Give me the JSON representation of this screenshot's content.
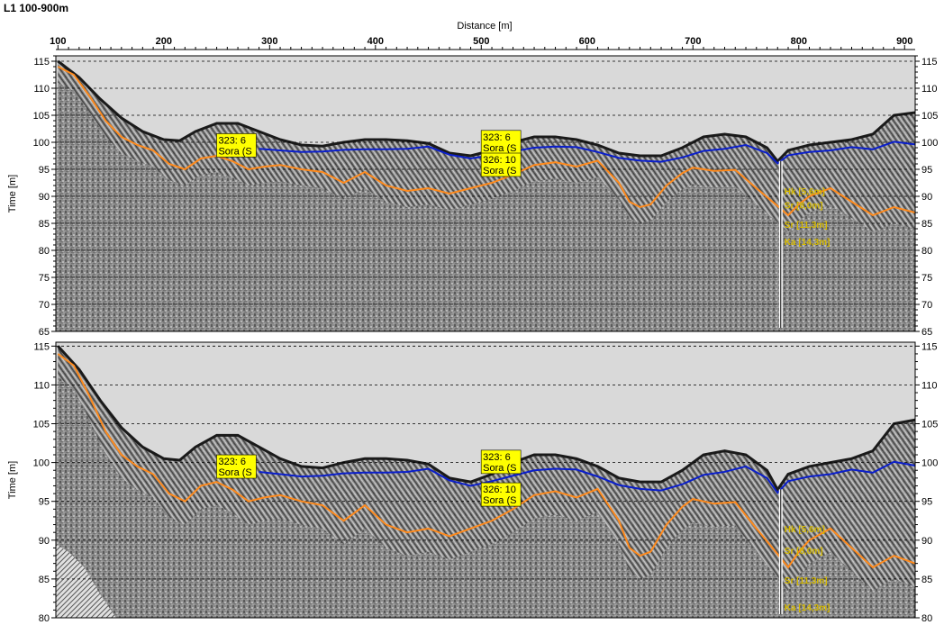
{
  "title": "L1 100-900m",
  "colors": {
    "water": "#0a1ecc",
    "bottom": "#ff8a1c",
    "label_bg": "#ffff00",
    "layer_text": "#d4b800",
    "sky": "#d9d9d9"
  },
  "chart_data": {
    "type": "line",
    "xlabel": "Distance [m]",
    "ylabel": "Time [m]",
    "xlim": [
      98,
      910
    ],
    "x_ticks": [
      100,
      200,
      300,
      400,
      500,
      600,
      700,
      800,
      900
    ],
    "grid": true,
    "panels": [
      {
        "ylim": [
          65,
          116
        ],
        "y_ticks": [
          115,
          110,
          105,
          100,
          95,
          90,
          85,
          80,
          75,
          70,
          65
        ],
        "series": [
          {
            "x": [
              100,
              120,
              140,
              160,
              180,
              200,
              215,
              230,
              250,
              270,
              290,
              310,
              330,
              350,
              370,
              390,
              410,
              430,
              450,
              470,
              490,
              510,
              530,
              550,
              570,
              590,
              610,
              630,
              650,
              670,
              690,
              710,
              730,
              750,
              770,
              780,
              790,
              810,
              830,
              850,
              870,
              890,
              910
            ],
            "y": [
              115,
              112,
              108,
              104.5,
              102,
              100.5,
              100.3,
              102,
              103.5,
              103.5,
              102,
              100.5,
              99.5,
              99.3,
              100,
              100.5,
              100.5,
              100.3,
              99.8,
              98,
              97.5,
              98.5,
              100,
              101,
              101,
              100.5,
              99.5,
              98,
              97.5,
              97.5,
              99,
              101,
              101.5,
              101,
              99,
              96.5,
              98.5,
              99.5,
              100,
              100.5,
              101.5,
              105,
              105.5
            ]
          },
          {
            "name": "",
            "x": [
              290,
              310,
              330,
              350,
              370,
              390,
              410,
              430,
              450,
              470,
              490,
              510,
              530,
              550,
              570,
              590,
              610,
              630,
              650,
              670,
              690,
              710,
              730,
              750,
              770,
              780,
              790,
              810,
              830,
              850,
              870,
              890,
              910
            ],
            "y": [
              98.8,
              98.5,
              98.2,
              98.3,
              98.6,
              98.7,
              98.7,
              98.8,
              99.2,
              97.7,
              97.0,
              97.6,
              98.3,
              99.0,
              99.2,
              99.1,
              98.2,
              97.1,
              96.6,
              96.4,
              97.2,
              98.4,
              98.8,
              99.5,
              98.0,
              96.1,
              97.6,
              98.2,
              98.5,
              99.1,
              98.7,
              100.1,
              99.6
            ]
          },
          {
            "name": "",
            "x": [
              100,
              115,
              130,
              145,
              160,
              175,
              190,
              205,
              220,
              235,
              250,
              265,
              280,
              295,
              310,
              330,
              350,
              370,
              390,
              410,
              430,
              450,
              470,
              490,
              510,
              530,
              550,
              570,
              590,
              610,
              630,
              640,
              650,
              660,
              675,
              690,
              700,
              720,
              740,
              760,
              780,
              790,
              800,
              810,
              830,
              850,
              870,
              890,
              910
            ],
            "y": [
              114,
              112.5,
              108.5,
              104,
              101,
              99.5,
              98.5,
              96,
              95,
              97,
              97.5,
              96.5,
              95,
              95.5,
              95.8,
              95,
              94.5,
              92.5,
              94.5,
              92,
              91,
              91.5,
              90.5,
              91.5,
              92.5,
              94,
              95.8,
              96.3,
              95.5,
              96.6,
              92.5,
              89,
              88,
              88.5,
              92,
              94.3,
              95.3,
              94.7,
              94.9,
              91.5,
              88.2,
              86.5,
              88.5,
              90,
              91.5,
              89,
              86.5,
              88,
              87
            ]
          }
        ],
        "labels": [
          {
            "x": 255,
            "y": 99.6,
            "lines": [
              "323: 6",
              "Sora (S"
            ]
          },
          {
            "x": 505,
            "y": 100.2,
            "lines": [
              "323: 6",
              "Sora (S"
            ]
          },
          {
            "x": 505,
            "y": 96.0,
            "lines": [
              "326: 10",
              "Sora (S"
            ]
          }
        ],
        "layers": [
          {
            "y": 91.0,
            "text": "Hk [5,6m]"
          },
          {
            "y": 88.4,
            "text": "Sr [8,0m]"
          },
          {
            "y": 84.8,
            "text": "Sr [11,3m]"
          },
          {
            "y": 81.7,
            "text": "Ka [14,3m]"
          }
        ]
      },
      {
        "ylim": [
          80,
          115.5
        ],
        "y_ticks": [
          115,
          110,
          105,
          100,
          95,
          90,
          85,
          80
        ],
        "series": [
          {
            "x": [
              100,
              120,
              140,
              160,
              180,
              200,
              215,
              230,
              250,
              270,
              290,
              310,
              330,
              350,
              370,
              390,
              410,
              430,
              450,
              470,
              490,
              510,
              530,
              550,
              570,
              590,
              610,
              630,
              650,
              670,
              690,
              710,
              730,
              750,
              770,
              780,
              790,
              810,
              830,
              850,
              870,
              890,
              910
            ],
            "y": [
              115,
              112,
              108,
              104.5,
              102,
              100.5,
              100.3,
              102,
              103.5,
              103.5,
              102,
              100.5,
              99.5,
              99.3,
              100,
              100.5,
              100.5,
              100.3,
              99.8,
              98,
              97.5,
              98.5,
              100,
              101,
              101,
              100.5,
              99.5,
              98,
              97.5,
              97.5,
              99,
              101,
              101.5,
              101,
              99,
              96.5,
              98.5,
              99.5,
              100,
              100.5,
              101.5,
              105,
              105.5
            ]
          },
          {
            "name": "",
            "x": [
              290,
              310,
              330,
              350,
              370,
              390,
              410,
              430,
              450,
              470,
              490,
              510,
              530,
              550,
              570,
              590,
              610,
              630,
              650,
              670,
              690,
              710,
              730,
              750,
              770,
              780,
              790,
              810,
              830,
              850,
              870,
              890,
              910
            ],
            "y": [
              98.8,
              98.5,
              98.2,
              98.3,
              98.6,
              98.7,
              98.7,
              98.8,
              99.2,
              97.7,
              97.0,
              97.6,
              98.3,
              99.0,
              99.2,
              99.1,
              98.2,
              97.1,
              96.6,
              96.4,
              97.2,
              98.4,
              98.8,
              99.5,
              98.0,
              96.1,
              97.6,
              98.2,
              98.5,
              99.1,
              98.7,
              100.1,
              99.6
            ]
          },
          {
            "name": "",
            "x": [
              100,
              115,
              130,
              145,
              160,
              175,
              190,
              205,
              220,
              235,
              250,
              265,
              280,
              295,
              310,
              330,
              350,
              370,
              390,
              410,
              430,
              450,
              470,
              490,
              510,
              530,
              550,
              570,
              590,
              610,
              630,
              640,
              650,
              660,
              675,
              690,
              700,
              720,
              740,
              760,
              780,
              790,
              800,
              810,
              830,
              850,
              870,
              890,
              910
            ],
            "y": [
              114,
              112.5,
              108.5,
              104,
              101,
              99.5,
              98.5,
              96,
              95,
              97,
              97.5,
              96.5,
              95,
              95.5,
              95.8,
              95,
              94.5,
              92.5,
              94.5,
              92,
              91,
              91.5,
              90.5,
              91.5,
              92.5,
              94,
              95.8,
              96.3,
              95.5,
              96.6,
              92.5,
              89,
              88,
              88.5,
              92,
              94.3,
              95.3,
              94.7,
              94.9,
              91.5,
              88.2,
              86.5,
              88.5,
              90,
              91.5,
              89,
              86.5,
              88,
              87
            ]
          }
        ],
        "labels": [
          {
            "x": 255,
            "y": 99.6,
            "lines": [
              "323: 6",
              "Sora (S"
            ]
          },
          {
            "x": 505,
            "y": 100.2,
            "lines": [
              "323: 6",
              "Sora (S"
            ]
          },
          {
            "x": 505,
            "y": 96.0,
            "lines": [
              "326: 10",
              "Sora (S"
            ]
          }
        ],
        "layers": [
          {
            "y": 91.5,
            "text": "Hk [5,6m]"
          },
          {
            "y": 88.7,
            "text": "Sr [8,0m]"
          },
          {
            "y": 84.9,
            "text": "Sr [11,3m]"
          },
          {
            "y": 81.4,
            "text": "Ka [14,3m]"
          }
        ]
      }
    ]
  }
}
